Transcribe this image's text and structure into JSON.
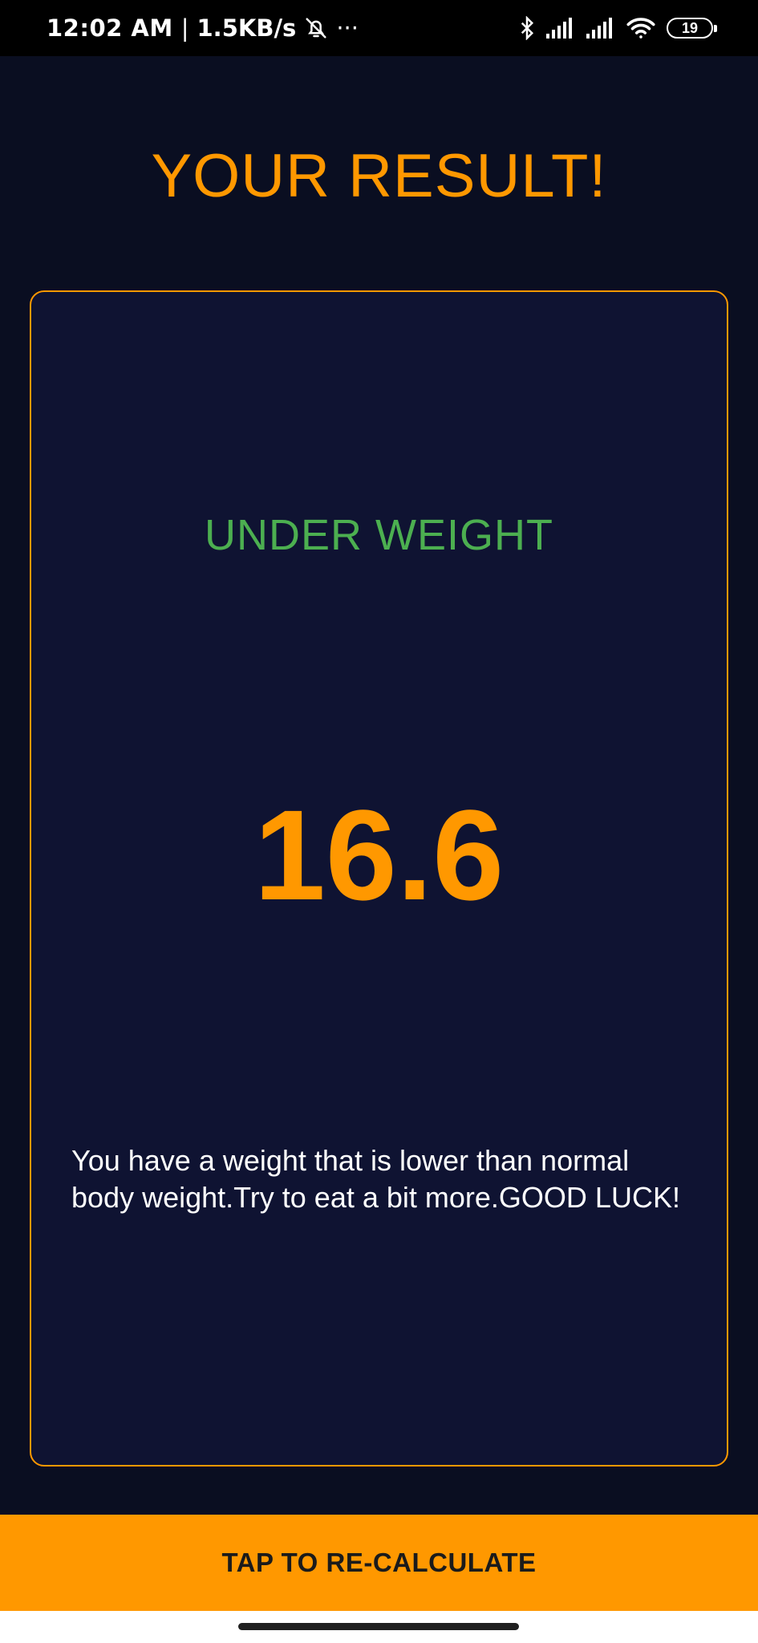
{
  "status_bar": {
    "time": "12:02 AM",
    "separator": "|",
    "network_speed": "1.5KB/s",
    "more": "···",
    "battery_level": "19",
    "icons": [
      "bell-off-icon",
      "bluetooth-icon",
      "signal-icon",
      "signal-icon",
      "wifi-icon",
      "battery-icon"
    ]
  },
  "page": {
    "title": "YOUR RESULT!"
  },
  "result": {
    "category": "UNDER WEIGHT",
    "bmi_value": "16.6",
    "message": "You have a weight that is lower than normal body weight.Try to eat a bit more.GOOD LUCK!"
  },
  "action": {
    "recalculate_label": "TAP TO RE-CALCULATE"
  },
  "colors": {
    "background": "#0a0e21",
    "card": "#0f1332",
    "accent": "#ff9800",
    "category": "#4caf50",
    "text": "#ffffff"
  }
}
